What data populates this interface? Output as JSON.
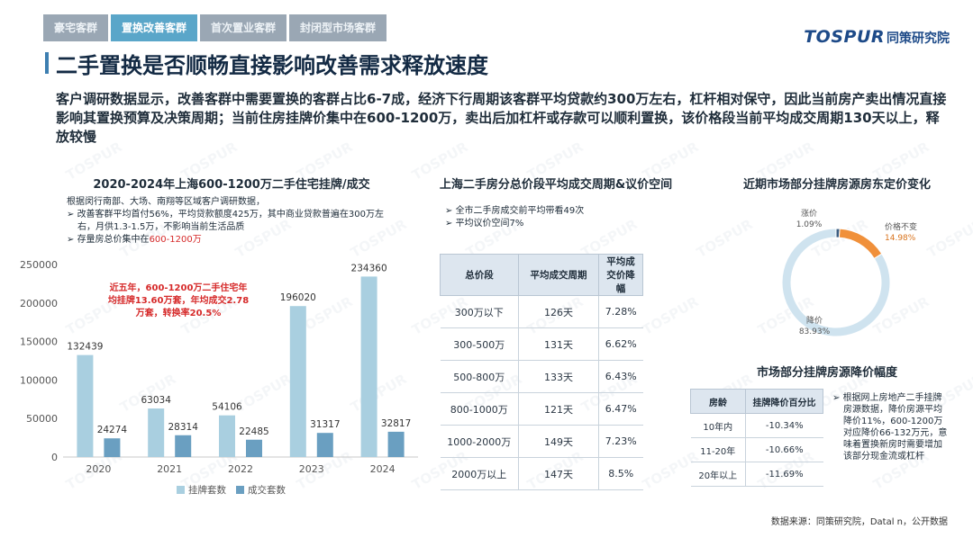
{
  "tabs": [
    {
      "label": "豪宅客群"
    },
    {
      "label": "置换改善客群"
    },
    {
      "label": "首次置业客群"
    },
    {
      "label": "封闭型市场客群"
    }
  ],
  "logo": {
    "en": "TOSPUR",
    "cn": "同策研究院"
  },
  "page_title": "二手置换是否顺畅直接影响改善需求释放速度",
  "intro": "客户调研数据显示，改善客群中需要置换的客群占比6-7成，经济下行周期该客群平均贷款约300万左右，杠杆相对保守，因此当前房产卖出情况直接影响其置换预算及决策周期；当前住房挂牌价集中在600-1200万，卖出后加杠杆或存款可以顺利置换，该价格段当前平均成交周期130天以上，释放较慢",
  "left": {
    "title": "2020-2024年上海600-1200万二手住宅挂牌/成交",
    "note_intro": "根据闵行南部、大场、南翔等区域客户调研数据，",
    "note_b1": "改善客群平均首付56%，平均贷款额度425万，其中商业贷款普遍在300万左右，月供1.3-1.5万，不影响当前生活品质",
    "note_b2_prefix": "存量房总价集中在",
    "note_b2_red": "600-1200万",
    "chart_note": "近五年，600-1200万二手住宅年均挂牌13.60万套，年均成交2.78万套，转换率20.5%"
  },
  "middle": {
    "title": "上海二手房分总价段平均成交周期&议价空间",
    "bullets": [
      "全市二手房成交前平均带看49次",
      "平均议价空间7%"
    ],
    "table": {
      "headers": [
        "总价段",
        "平均成交周期",
        "平均成交价降幅"
      ],
      "rows": [
        [
          "300万以下",
          "126天",
          "7.28%"
        ],
        [
          "300-500万",
          "131天",
          "6.62%"
        ],
        [
          "500-800万",
          "133天",
          "6.43%"
        ],
        [
          "800-1000万",
          "121天",
          "6.47%"
        ],
        [
          "1000-2000万",
          "149天",
          "7.23%"
        ],
        [
          "2000万以上",
          "147天",
          "8.5%"
        ]
      ]
    }
  },
  "right": {
    "donut_title": "近期市场部分挂牌房源房东定价变化",
    "table_title": "市场部分挂牌房源降价幅度",
    "table": {
      "headers": [
        "房龄",
        "挂牌降价百分比"
      ],
      "rows": [
        [
          "10年内",
          "-10.34%"
        ],
        [
          "11-20年",
          "-10.66%"
        ],
        [
          "20年以上",
          "-11.69%"
        ]
      ]
    },
    "note": "根据网上房地产二手挂牌房源数据，降价房源平均降价11%，600-1200万对应降价66-132万元，意味着置换新房时需要增加该部分现金流或杠杆"
  },
  "source": "数据来源：同策研究院，Datal n，公开数据",
  "colors": {
    "listing": "#a9cfe0",
    "deal": "#6a9fc1",
    "rise": "#3b5d80",
    "flat": "#f0903a",
    "drop": "#cfe3ef"
  },
  "chart_data": [
    {
      "type": "bar",
      "categories": [
        "2020",
        "2021",
        "2022",
        "2023",
        "2024"
      ],
      "series": [
        {
          "name": "挂牌套数",
          "values": [
            132439,
            63034,
            54106,
            196020,
            234360
          ]
        },
        {
          "name": "成交套数",
          "values": [
            24274,
            28314,
            22485,
            31317,
            32817
          ]
        }
      ],
      "title": "2020-2024年上海600-1200万二手住宅挂牌/成交",
      "xlabel": "",
      "ylabel": "",
      "ylim": [
        0,
        250000
      ],
      "yticks": [
        0,
        50000,
        100000,
        150000,
        200000,
        250000
      ],
      "grid": false,
      "legend": "bottom"
    },
    {
      "type": "pie",
      "title": "近期市场部分挂牌房源房东定价变化",
      "labels": [
        "涨价",
        "价格不变",
        "降价"
      ],
      "values": [
        1.09,
        14.98,
        83.93
      ],
      "value_labels": [
        "1.09%",
        "14.98%",
        "83.93%"
      ]
    }
  ]
}
